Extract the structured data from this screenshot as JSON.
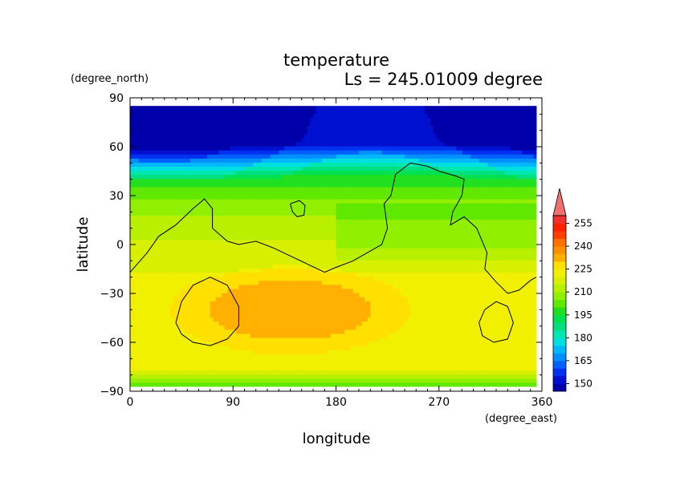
{
  "chart_data": {
    "type": "heatmap",
    "title": "temperature",
    "subtitle": "Ls = 245.01009 degree",
    "xlabel": "longitude",
    "ylabel": "latitude",
    "x_unit": "(degree_east)",
    "y_unit": "(degree_north)",
    "xlim": [
      0,
      360
    ],
    "ylim": [
      -90,
      90
    ],
    "x_ticks": [
      "0",
      "90",
      "180",
      "270",
      "360"
    ],
    "y_ticks": [
      "90",
      "60",
      "30",
      "0",
      "−30",
      "−60",
      "−90"
    ],
    "x_tick_values": [
      0,
      90,
      180,
      270,
      360
    ],
    "y_tick_values": [
      90,
      60,
      30,
      0,
      -30,
      -60,
      -90
    ],
    "data_extent": {
      "lon": [
        0,
        355
      ],
      "lat": [
        -87,
        85
      ]
    },
    "colorbar": {
      "levels": [
        145,
        150,
        155,
        160,
        165,
        170,
        175,
        180,
        185,
        190,
        195,
        200,
        205,
        210,
        215,
        220,
        225,
        230,
        235,
        240,
        245,
        250,
        255,
        260
      ],
      "colors": [
        "#0000aa",
        "#0010d0",
        "#0030f0",
        "#0060ff",
        "#0090ff",
        "#00b8ff",
        "#00e0e0",
        "#00e8b0",
        "#00e080",
        "#00e050",
        "#20e020",
        "#60e800",
        "#90f000",
        "#b8f000",
        "#d8f000",
        "#f0f000",
        "#ffe000",
        "#ffb000",
        "#ff9000",
        "#ff7000",
        "#ff4000",
        "#ff2000",
        "#ee3030",
        "#f07070"
      ],
      "tick_labels": [
        "255",
        "240",
        "225",
        "210",
        "195",
        "180",
        "165",
        "150"
      ],
      "tick_values": [
        255,
        240,
        225,
        210,
        195,
        180,
        165,
        150
      ],
      "extend": "max"
    },
    "filled_regions": [
      {
        "name": "north-polar-cap",
        "value": 147,
        "lat_range": [
          62,
          85
        ]
      },
      {
        "name": "north-high-lat",
        "value": 170,
        "lat_range": [
          45,
          62
        ]
      },
      {
        "name": "north-mid-lat",
        "value": 200,
        "lat_range": [
          15,
          45
        ]
      },
      {
        "name": "equatorial-band",
        "value": 215,
        "lat_range": [
          -20,
          15
        ]
      },
      {
        "name": "south-mid-lat",
        "value": 222,
        "lat_range": [
          -75,
          -20
        ]
      },
      {
        "name": "south-warm-core",
        "value": 232,
        "lon_range": [
          40,
          240
        ],
        "lat_range": [
          -65,
          -10
        ]
      },
      {
        "name": "south-polar-edge",
        "value": 205,
        "lat_range": [
          -87,
          -75
        ]
      }
    ],
    "contours": [
      {
        "name": "topography-contour-main",
        "points": [
          [
            0,
            -17
          ],
          [
            15,
            -5
          ],
          [
            25,
            5
          ],
          [
            40,
            12
          ],
          [
            55,
            22
          ],
          [
            65,
            28
          ],
          [
            72,
            22
          ],
          [
            72,
            10
          ],
          [
            85,
            2
          ],
          [
            95,
            0
          ],
          [
            110,
            2
          ],
          [
            125,
            -2
          ],
          [
            140,
            -7
          ],
          [
            155,
            -12
          ],
          [
            170,
            -17
          ],
          [
            180,
            -14
          ],
          [
            195,
            -10
          ],
          [
            210,
            -4
          ],
          [
            220,
            0
          ],
          [
            225,
            10
          ],
          [
            222,
            25
          ],
          [
            228,
            30
          ],
          [
            232,
            43
          ],
          [
            245,
            50
          ],
          [
            260,
            48
          ],
          [
            270,
            45
          ],
          [
            285,
            42
          ],
          [
            292,
            40
          ],
          [
            290,
            30
          ],
          [
            282,
            20
          ],
          [
            280,
            12
          ],
          [
            292,
            17
          ],
          [
            303,
            10
          ],
          [
            312,
            -5
          ],
          [
            310,
            -15
          ],
          [
            320,
            -23
          ],
          [
            330,
            -30
          ],
          [
            340,
            -28
          ],
          [
            350,
            -22
          ],
          [
            355,
            -20
          ]
        ]
      },
      {
        "name": "topography-contour-small-north",
        "points": [
          [
            140,
            25
          ],
          [
            148,
            27
          ],
          [
            153,
            24
          ],
          [
            152,
            18
          ],
          [
            146,
            17
          ],
          [
            142,
            20
          ],
          [
            140,
            25
          ]
        ]
      },
      {
        "name": "topography-contour-south-left",
        "points": [
          [
            40,
            -48
          ],
          [
            45,
            -35
          ],
          [
            55,
            -25
          ],
          [
            70,
            -20
          ],
          [
            85,
            -25
          ],
          [
            95,
            -38
          ],
          [
            95,
            -50
          ],
          [
            85,
            -58
          ],
          [
            70,
            -62
          ],
          [
            55,
            -60
          ],
          [
            45,
            -55
          ],
          [
            40,
            -48
          ]
        ]
      },
      {
        "name": "topography-contour-south-right",
        "points": [
          [
            305,
            -48
          ],
          [
            310,
            -40
          ],
          [
            320,
            -35
          ],
          [
            330,
            -38
          ],
          [
            335,
            -48
          ],
          [
            330,
            -58
          ],
          [
            318,
            -60
          ],
          [
            308,
            -56
          ],
          [
            305,
            -48
          ]
        ]
      }
    ]
  }
}
